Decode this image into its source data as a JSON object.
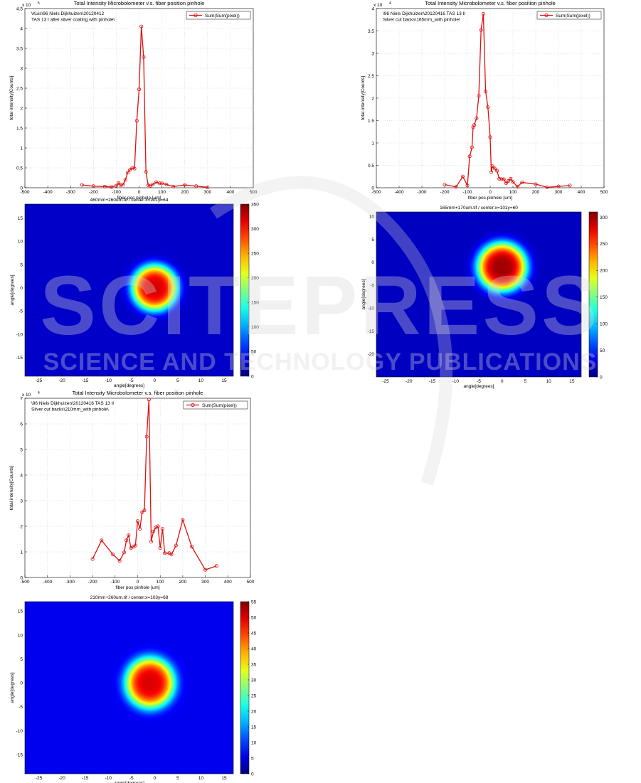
{
  "charts": [
    {
      "id": "line1",
      "type": "line",
      "title": "Total Intensity Microbolometer v.s. fiber position pinhole",
      "annotation": [
        "\\Kuis\\96 Niels Dijkhuizen\\20120412",
        "TAS 13 I after silver coating with pinhole\\"
      ],
      "xlabel": "fiber pos pinhole [um]",
      "ylabel": "total intensity[Counts]",
      "yexp": "x 10",
      "yexp_power": "5",
      "xlim": [
        -500,
        500
      ],
      "ylim": [
        0,
        4.5
      ],
      "xticks": [
        -500,
        -400,
        -300,
        -200,
        -100,
        0,
        100,
        200,
        300,
        400,
        500
      ],
      "yticks": [
        0,
        0.5,
        1,
        1.5,
        2,
        2.5,
        3,
        3.5,
        4,
        4.5
      ],
      "legend": "Sum(Sum(pixel))",
      "legend_loc": "top-right",
      "grid": true,
      "series_color": "#e01010",
      "x": [
        -250,
        -200,
        -150,
        -120,
        -100,
        -90,
        -80,
        -70,
        -60,
        -50,
        -40,
        -30,
        -20,
        -10,
        0,
        10,
        20,
        30,
        40,
        50,
        60,
        75,
        90,
        100,
        120,
        150,
        200,
        250,
        300
      ],
      "y": [
        0.07,
        0.04,
        0.03,
        0.02,
        0.05,
        0.12,
        0.06,
        0.08,
        0.2,
        0.38,
        0.45,
        0.5,
        0.48,
        1.68,
        2.47,
        4.05,
        3.28,
        0.4,
        0.06,
        0.05,
        0.08,
        0.14,
        0.11,
        0.11,
        0.08,
        0.03,
        0.07,
        0.04,
        0.01
      ]
    },
    {
      "id": "line2",
      "type": "line",
      "title": "Total Intensity Microbolometer v.s. fiber position pinhole",
      "annotation": [
        "\\96 Niels Dijkhuizen\\20120416 TAS 13 II",
        "Silver cut backs\\165mm_with pinhole\\"
      ],
      "xlabel": "fiber pos pinhole [um]",
      "ylabel": "total intensity[Counts]",
      "yexp": "x 10",
      "yexp_power": "4",
      "xlim": [
        -500,
        500
      ],
      "ylim": [
        0,
        4
      ],
      "xticks": [
        -500,
        -400,
        -300,
        -200,
        -100,
        0,
        100,
        200,
        300,
        400,
        500
      ],
      "yticks": [
        0,
        0.5,
        1,
        1.5,
        2,
        2.5,
        3,
        3.5,
        4
      ],
      "legend": "Sum(Sum(pixel))",
      "legend_loc": "top-right",
      "grid": true,
      "series_color": "#e01010",
      "x": [
        -200,
        -150,
        -120,
        -100,
        -90,
        -80,
        -75,
        -70,
        -60,
        -50,
        -40,
        -30,
        -20,
        -10,
        0,
        5,
        10,
        20,
        30,
        40,
        50,
        60,
        70,
        80,
        90,
        100,
        120,
        140,
        200,
        250,
        300,
        350
      ],
      "y": [
        0.07,
        0.02,
        0.25,
        0.05,
        0.7,
        0.9,
        1.35,
        1.4,
        1.55,
        2.05,
        3.52,
        3.88,
        2.15,
        1.8,
        1.13,
        0.35,
        0.48,
        0.43,
        0.38,
        0.2,
        0.19,
        0.19,
        0.1,
        0.15,
        0.2,
        0.13,
        0.02,
        0.12,
        0.08,
        0.01,
        0.03,
        0.05
      ]
    },
    {
      "id": "line3",
      "type": "line",
      "title": "Total Intensity Microbolometer v.s. fiber position pinhole",
      "annotation": [
        "\\96 Niels Dijkhuizen\\20120416 TAS 13 II",
        "Silver cut backs\\210mm_with pinhole\\"
      ],
      "xlabel": "fiber pos pinhole [um]",
      "ylabel": "total intensity[Counts]",
      "yexp": "x 10",
      "yexp_power": "4",
      "xlim": [
        -500,
        500
      ],
      "ylim": [
        0,
        7
      ],
      "xticks": [
        -500,
        -400,
        -300,
        -200,
        -100,
        0,
        100,
        200,
        300,
        400,
        500
      ],
      "yticks": [
        0,
        1,
        2,
        3,
        4,
        5,
        6,
        7
      ],
      "legend": "Sum(Sum(pixel))",
      "legend_loc": "top-right",
      "grid": true,
      "series_color": "#e01010",
      "x": [
        -200,
        -160,
        -110,
        -80,
        -60,
        -50,
        -40,
        -30,
        -20,
        -10,
        0,
        10,
        20,
        30,
        40,
        50,
        60,
        70,
        80,
        90,
        100,
        110,
        120,
        140,
        150,
        170,
        200,
        240,
        300,
        350
      ],
      "y": [
        0.72,
        1.45,
        0.9,
        0.65,
        0.98,
        1.45,
        1.65,
        1.15,
        1.2,
        1.25,
        2.2,
        1.9,
        2.55,
        2.62,
        5.5,
        6.95,
        1.4,
        1.8,
        1.95,
        2.0,
        1.15,
        1.9,
        0.95,
        0.95,
        0.9,
        1.25,
        2.25,
        1.2,
        0.3,
        0.45
      ]
    }
  ],
  "heatmaps": [
    {
      "id": "hm1",
      "type": "heatmap",
      "title": "460mm+260um.tif  / center:x=101y=64",
      "xlabel": "angle[degrees]",
      "ylabel": "angle[degrees]",
      "xlim": [
        -28,
        17
      ],
      "ylim": [
        -19,
        18
      ],
      "xticks": [
        -25,
        -20,
        -15,
        -10,
        -5,
        0,
        5,
        10,
        15
      ],
      "yticks": [
        15,
        10,
        5,
        0,
        -5,
        -10,
        -15
      ],
      "colorbar_ticks": [
        350,
        300,
        250,
        200,
        150,
        100,
        50,
        0
      ],
      "cmax": 350,
      "spot_center": [
        0,
        0
      ],
      "spot_radius_deg": 6.5,
      "peak": 320,
      "background": 25
    },
    {
      "id": "hm2",
      "type": "heatmap",
      "title": "165mm+170um.tif  / center:x=101y=60",
      "xlabel": "angle[degrees]",
      "ylabel": "angle[degrees]",
      "xlim": [
        -27,
        17
      ],
      "ylim": [
        -25,
        11
      ],
      "xticks": [
        -25,
        -20,
        -15,
        -10,
        -5,
        0,
        5,
        10,
        15
      ],
      "yticks": [
        10,
        5,
        0,
        -5,
        -10,
        -15,
        -20
      ],
      "colorbar_ticks": [
        300,
        250,
        200,
        150,
        100,
        50,
        0
      ],
      "cmax": 310,
      "spot_center": [
        0,
        -1
      ],
      "spot_radius_deg": 7,
      "peak": 300,
      "background": 20
    },
    {
      "id": "hm3",
      "type": "heatmap",
      "title": "210mm+260um.tif  / center:x=103y=68",
      "xlabel": "angle[degrees]",
      "ylabel": "angle[degrees]",
      "xlim": [
        -28,
        17
      ],
      "ylim": [
        -19,
        17
      ],
      "xticks": [
        -25,
        -20,
        -15,
        -10,
        -5,
        0,
        5,
        10,
        15
      ],
      "yticks": [
        15,
        10,
        5,
        0,
        -5,
        -10,
        -15
      ],
      "colorbar_ticks": [
        55,
        50,
        45,
        40,
        35,
        30,
        25,
        20,
        15,
        10,
        5,
        0
      ],
      "cmax": 55,
      "spot_center": [
        -1,
        0
      ],
      "spot_radius_deg": 7,
      "peak": 50,
      "background": 6
    }
  ],
  "watermark": {
    "main": "SCITEPRESS",
    "sub": "SCIENCE AND TECHNOLOGY PUBLICATIONS"
  }
}
